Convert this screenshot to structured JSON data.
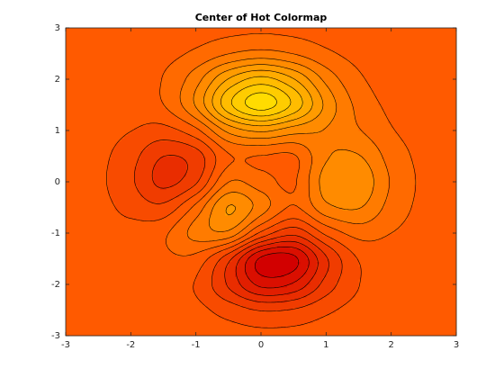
{
  "chart_data": {
    "type": "contourf",
    "title": "Center of Hot Colormap",
    "x": [
      -3,
      -2.5,
      -2,
      -1.5,
      -1,
      -0.5,
      0,
      0.5,
      1,
      1.5,
      2,
      2.5,
      3
    ],
    "y": [
      -3,
      -2.5,
      -2,
      -1.5,
      -1,
      -0.5,
      0,
      0.5,
      1,
      1.5,
      2,
      2.5,
      3
    ],
    "z": [
      [
        0,
        0,
        0,
        0.01,
        -0.03,
        -0.14,
        -0.24,
        -0.22,
        -0.11,
        -0.03,
        -0.01,
        0,
        0
      ],
      [
        0,
        0,
        0.02,
        0,
        -0.23,
        -0.91,
        -1.57,
        -1.41,
        -0.69,
        -0.18,
        -0.03,
        0,
        0
      ],
      [
        0,
        0.01,
        0.05,
        0.05,
        -0.59,
        -2.63,
        -4.75,
        -4.34,
        -2.1,
        -0.53,
        -0.06,
        0,
        0
      ],
      [
        0,
        0.01,
        0.08,
        0.33,
        0.15,
        -2.19,
        -5.68,
        -5.76,
        -2.63,
        -0.44,
        0.04,
        0.03,
        0
      ],
      [
        -0.01,
        -0.06,
        -0.13,
        0.3,
        1.86,
        2.22,
        -0.72,
        -2.22,
        -0.27,
        0.88,
        0.5,
        0.11,
        0.01
      ],
      [
        -0.03,
        -0.2,
        -0.8,
        -1.21,
        0.8,
        3.55,
        2,
        0.39,
        2.2,
        2.56,
        1.12,
        0.24,
        0.03
      ],
      [
        -0.04,
        -0.3,
        -1.33,
        -2.77,
        -1.65,
        1.48,
        0.98,
        0.37,
        2.94,
        3.27,
        1.41,
        0.3,
        0.03
      ],
      [
        -0.03,
        -0.25,
        -1.12,
        -2.49,
        -2,
        0.39,
        0.46,
        0.38,
        2.38,
        2.56,
        1.09,
        0.23,
        0.03
      ],
      [
        -0.01,
        -0.11,
        -0.48,
        -0.86,
        0.23,
        2.79,
        3.69,
        2.93,
        2.43,
        1.58,
        0.58,
        0.11,
        0.01
      ],
      [
        0,
        -0.02,
        -0.01,
        0.48,
        2.61,
        6.2,
        8,
        6.25,
        3.25,
        1.19,
        0.29,
        0.05,
        0
      ],
      [
        0,
        0.01,
        0.08,
        0.55,
        2.09,
        4.55,
        5.85,
        4.56,
        2.21,
        0.68,
        0.13,
        0.02,
        0
      ],
      [
        0,
        0,
        0.03,
        0.19,
        0.69,
        1.47,
        1.88,
        1.47,
        0.7,
        0.2,
        0.04,
        0,
        0
      ],
      [
        0,
        0,
        0.01,
        0.03,
        0.11,
        0.23,
        0.3,
        0.23,
        0.11,
        0.03,
        0.01,
        0,
        0
      ]
    ],
    "levels": [
      -5.5,
      -4.5,
      -3.5,
      -2.5,
      -1.5,
      -0.5,
      0.5,
      1.5,
      2.5,
      3.5,
      4.5,
      5.5,
      6.5,
      7.5
    ],
    "colormap": [
      {
        "value": -6,
        "color": "#d20000"
      },
      {
        "value": 0,
        "color": "#ff5a00"
      },
      {
        "value": 8,
        "color": "#ffdc00"
      }
    ],
    "xlim": [
      -3,
      3
    ],
    "ylim": [
      -3,
      3
    ],
    "xticks": [
      -3,
      -2,
      -1,
      0,
      1,
      2,
      3
    ],
    "yticks": [
      -3,
      -2,
      -1,
      0,
      1,
      2,
      3
    ]
  }
}
